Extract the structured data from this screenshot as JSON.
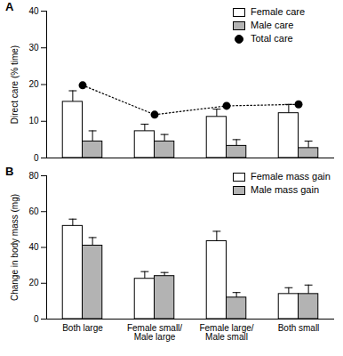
{
  "chart_data": [
    {
      "type": "bar",
      "title": "A",
      "categories": [
        "Both large",
        "Female small/ Male large",
        "Female large/ Male small",
        "Both small"
      ],
      "y_label": "Direct care (% time)",
      "series": [
        {
          "name": "Female care",
          "color": "#ffffff",
          "values": [
            15.3,
            7.3,
            11.2,
            12.2
          ],
          "errors": [
            3.0,
            1.9,
            2.1,
            2.4
          ]
        },
        {
          "name": "Male care",
          "color": "#b3b3b3",
          "values": [
            4.5,
            4.5,
            3.3,
            2.7
          ],
          "errors": [
            2.9,
            1.9,
            1.7,
            1.9
          ]
        },
        {
          "name": "Total care",
          "type": "line",
          "color": "#000000",
          "marker": "circle",
          "line_style": "dotted",
          "values": [
            19.8,
            11.8,
            14.2,
            14.6
          ]
        }
      ],
      "ylim": [
        0,
        40
      ],
      "yticks": [
        0,
        10,
        20,
        30,
        40
      ],
      "grid": false,
      "legend": "top-right",
      "tick_labels": "y"
    },
    {
      "type": "bar",
      "title": "B",
      "categories": [
        "Both large",
        "Female small/ Male large",
        "Female large/ Male small",
        "Both small"
      ],
      "y_label": "Change in body mass (mg)",
      "series": [
        {
          "name": "Female mass gain",
          "color": "#ffffff",
          "values": [
            52,
            22.5,
            43.5,
            14
          ],
          "errors": [
            3.8,
            4.0,
            5.5,
            3.5
          ]
        },
        {
          "name": "Male mass gain",
          "color": "#b3b3b3",
          "values": [
            41,
            24,
            12,
            14
          ],
          "errors": [
            4.5,
            2.0,
            2.8,
            5.0
          ]
        }
      ],
      "ylim": [
        0,
        80
      ],
      "yticks": [
        0,
        20,
        40,
        60,
        80
      ],
      "grid": false,
      "legend": "top-right"
    }
  ]
}
